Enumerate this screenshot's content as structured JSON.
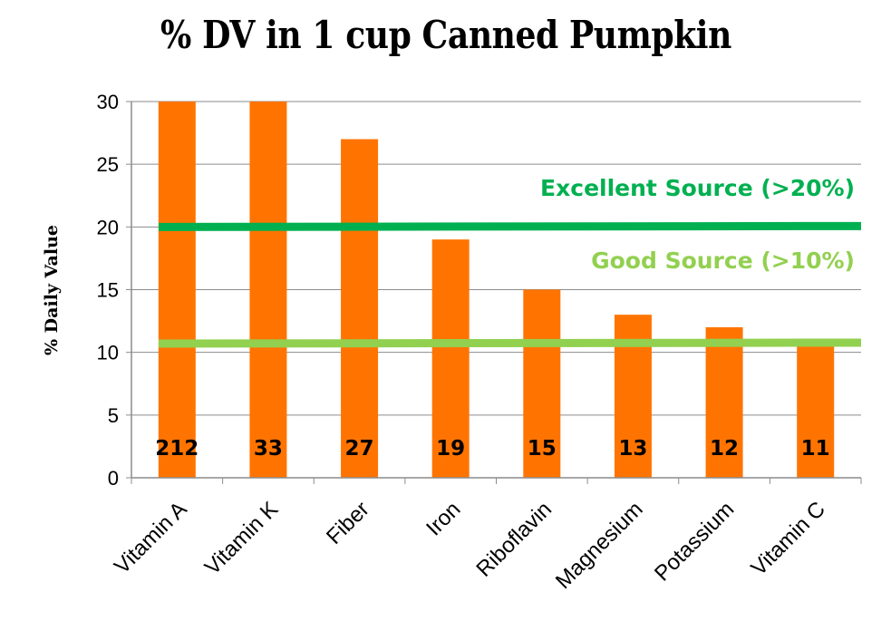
{
  "chart_data": {
    "type": "bar",
    "title": "% DV in 1 cup Canned Pumpkin",
    "ylabel": "% Daily Value",
    "xlabel": "",
    "ylim": [
      0,
      30
    ],
    "yticks": [
      0,
      5,
      10,
      15,
      20,
      25,
      30
    ],
    "categories": [
      "Vitamin A",
      "Vitamin K",
      "Fiber",
      "Iron",
      "Riboflavin",
      "Magnesium",
      "Potassium",
      "Vitamin C"
    ],
    "values": [
      212,
      33,
      27,
      19,
      15,
      13,
      12,
      11
    ],
    "data_labels": [
      "212",
      "33",
      "27",
      "19",
      "15",
      "13",
      "12",
      "11"
    ],
    "bar_color": "#ff7400",
    "grid": true,
    "reference_lines": [
      {
        "label": "Excellent Source (>20%)",
        "value": 20,
        "color": "#00b050"
      },
      {
        "label": "Good Source (>10%)",
        "value": 10.7,
        "color": "#92d050"
      }
    ]
  }
}
